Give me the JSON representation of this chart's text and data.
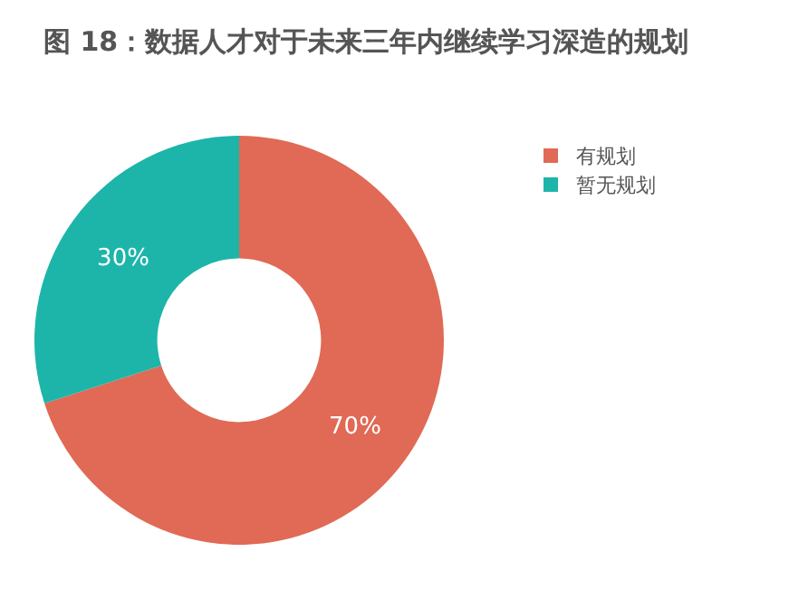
{
  "chart_data": {
    "type": "donut",
    "title": "图 18：数据人才对于未来三年内继续学习深造的规划",
    "categories": [
      "有规划",
      "暂无规划"
    ],
    "values": [
      70,
      30
    ],
    "colors": [
      "#e06a55",
      "#1db5aa"
    ],
    "value_labels": [
      "70%",
      "30%"
    ],
    "legend": "top right"
  }
}
